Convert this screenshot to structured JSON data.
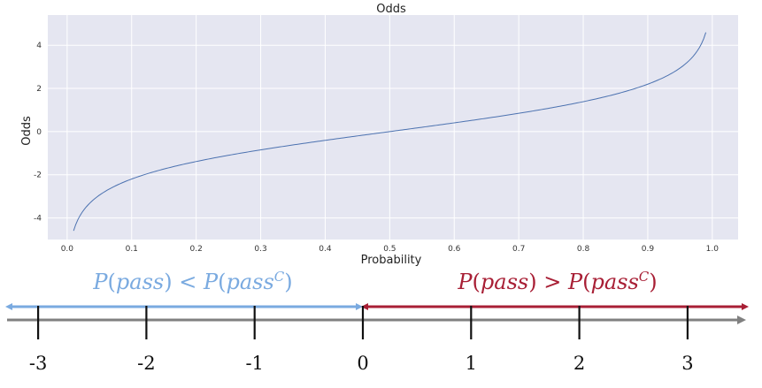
{
  "chart_data": [
    {
      "type": "line",
      "title": "Odds",
      "xlabel": "Probability",
      "ylabel": "Odds",
      "xlim": [
        -0.03,
        1.04
      ],
      "ylim": [
        -5.0,
        5.4
      ],
      "x_ticks": [
        0.0,
        0.1,
        0.2,
        0.3,
        0.4,
        0.5,
        0.6,
        0.7,
        0.8,
        0.9,
        1.0
      ],
      "x_tick_labels": [
        "0.0",
        "0.1",
        "0.2",
        "0.3",
        "0.4",
        "0.5",
        "0.6",
        "0.7",
        "0.8",
        "0.9",
        "1.0"
      ],
      "y_ticks": [
        -4,
        -2,
        0,
        2,
        4
      ],
      "y_tick_labels": [
        "-4",
        "-2",
        "0",
        "2",
        "4"
      ],
      "grid": true,
      "series": [
        {
          "function": "log(p/(1-p))",
          "x_range": [
            0.01,
            0.99
          ],
          "color": "#4c72b0"
        }
      ]
    },
    {
      "type": "number-line",
      "ticks": [
        -3,
        -2,
        -1,
        0,
        1,
        2,
        3
      ],
      "tick_labels": [
        "-3",
        "-2",
        "-1",
        "0",
        "1",
        "2",
        "3"
      ],
      "negative_region": {
        "text_parts": [
          "P",
          "(",
          "pass",
          ") < ",
          "P",
          "(",
          "pass",
          "C",
          ")"
        ],
        "color": "#7aaae0"
      },
      "positive_region": {
        "text_parts": [
          "P",
          "(",
          "pass",
          ") > ",
          "P",
          "(",
          "pass",
          "C",
          ")"
        ],
        "color": "#a81f35"
      },
      "axis_color": "#808080"
    }
  ],
  "colors": {
    "plot_background": "#e5e6f1",
    "grid": "#ffffff",
    "line": "#4c72b0"
  }
}
